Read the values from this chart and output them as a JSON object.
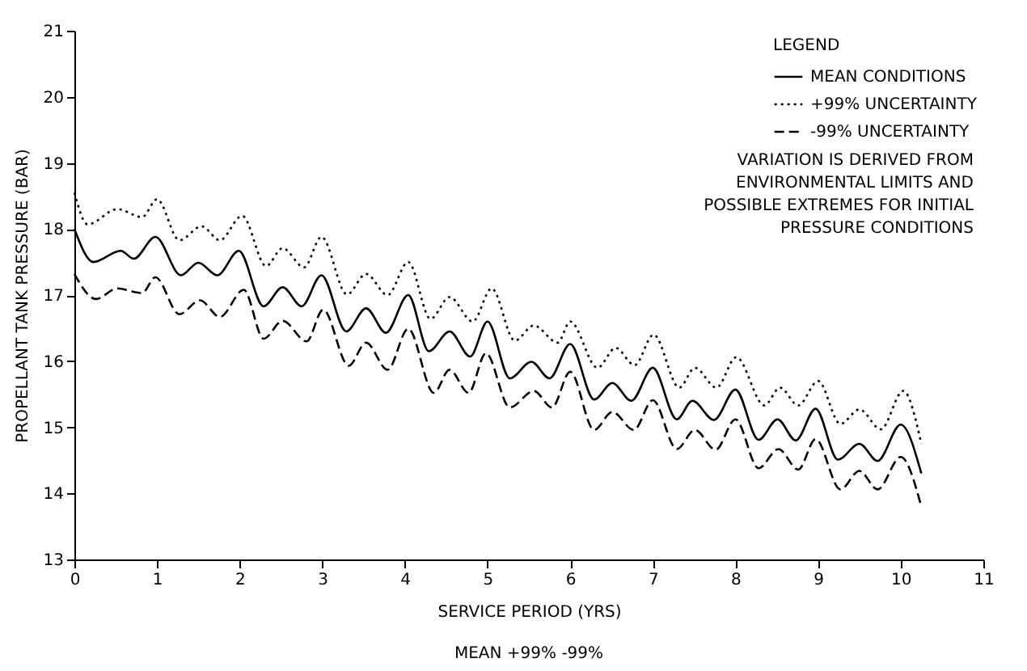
{
  "chart_data": {
    "type": "line",
    "xlabel": "SERVICE PERIOD (YRS)",
    "ylabel": "PROPELLANT TANK PRESSURE (BAR)",
    "legend_title": "LEGEND",
    "annotations": [
      "VARIATION IS DERIVED FROM",
      "ENVIRONMENTAL LIMITS AND",
      "POSSIBLE EXTREMES FOR INITIAL",
      "PRESSURE CONDITIONS",
      "MEAN  +99%    -99%"
    ],
    "xlim": [
      0,
      11
    ],
    "xticks": [
      0,
      1,
      2,
      3,
      4,
      5,
      6,
      7,
      8,
      9,
      10,
      11
    ],
    "ylim": [
      13,
      21
    ],
    "yticks": [
      13,
      14,
      15,
      16,
      17,
      18,
      19,
      20,
      21
    ],
    "grid": false,
    "legend": "top right",
    "marker": "none",
    "series": [
      {
        "name": "MEAN CONDITIONS",
        "color": "#000000",
        "line_style": "solid",
        "x": [
          0,
          0.23,
          0.56,
          0.72,
          0.98,
          1.29,
          1.5,
          1.73,
          1.99,
          2.29,
          2.52,
          2.75,
          2.99,
          3.29,
          3.53,
          3.77,
          4.04,
          4.29,
          4.54,
          4.79,
          5.0,
          5.27,
          5.53,
          5.75,
          6.0,
          6.29,
          6.51,
          6.74,
          7.0,
          7.29,
          7.48,
          7.74,
          8.0,
          8.28,
          8.51,
          8.73,
          8.97,
          9.24,
          9.5,
          9.72,
          10.0,
          10.25
        ],
        "values": [
          18.0,
          17.5,
          17.67,
          17.55,
          17.88,
          17.3,
          17.49,
          17.3,
          17.67,
          16.83,
          17.12,
          16.83,
          17.3,
          16.45,
          16.8,
          16.43,
          17.0,
          16.15,
          16.45,
          16.07,
          16.6,
          15.74,
          15.99,
          15.74,
          16.26,
          15.42,
          15.67,
          15.4,
          15.9,
          15.12,
          15.4,
          15.11,
          15.57,
          14.81,
          15.12,
          14.8,
          15.28,
          14.51,
          14.75,
          14.49,
          15.04,
          14.3
        ]
      },
      {
        "name": "+99% UNCERTAINTY",
        "color": "#000000",
        "line_style": "dotted",
        "x": [
          0,
          0.16,
          0.52,
          0.82,
          1.0,
          1.27,
          1.54,
          1.76,
          2.03,
          2.32,
          2.52,
          2.78,
          2.99,
          3.3,
          3.53,
          3.79,
          4.04,
          4.31,
          4.54,
          4.82,
          5.05,
          5.33,
          5.56,
          5.85,
          6.0,
          6.33,
          6.55,
          6.78,
          7.01,
          7.32,
          7.51,
          7.77,
          8.01,
          8.35,
          8.54,
          8.76,
          9.0,
          9.27,
          9.5,
          9.76,
          10.03,
          10.25
        ],
        "values": [
          18.55,
          18.07,
          18.3,
          18.18,
          18.45,
          17.83,
          18.04,
          17.83,
          18.2,
          17.44,
          17.71,
          17.42,
          17.88,
          17.01,
          17.32,
          17.0,
          17.5,
          16.64,
          16.97,
          16.6,
          17.1,
          16.31,
          16.54,
          16.28,
          16.6,
          15.9,
          16.2,
          15.94,
          16.4,
          15.6,
          15.9,
          15.6,
          16.06,
          15.33,
          15.6,
          15.33,
          15.7,
          15.05,
          15.27,
          14.97,
          15.55,
          14.75
        ]
      },
      {
        "name": "-99% UNCERTAINTY",
        "color": "#000000",
        "line_style": "dashed",
        "x": [
          0,
          0.26,
          0.52,
          0.82,
          0.98,
          1.27,
          1.52,
          1.76,
          2.05,
          2.29,
          2.52,
          2.81,
          3.01,
          3.32,
          3.53,
          3.79,
          4.04,
          4.35,
          4.54,
          4.77,
          4.98,
          5.27,
          5.56,
          5.78,
          6.0,
          6.29,
          6.51,
          6.77,
          7.0,
          7.29,
          7.51,
          7.76,
          8.0,
          8.28,
          8.52,
          8.76,
          8.97,
          9.27,
          9.5,
          9.72,
          10.0,
          10.25
        ],
        "values": [
          17.32,
          16.94,
          17.1,
          17.03,
          17.27,
          16.71,
          16.92,
          16.67,
          17.08,
          16.34,
          16.61,
          16.3,
          16.78,
          15.93,
          16.28,
          15.87,
          16.49,
          15.52,
          15.87,
          15.52,
          16.12,
          15.3,
          15.55,
          15.3,
          15.84,
          14.96,
          15.23,
          14.96,
          15.41,
          14.67,
          14.96,
          14.66,
          15.12,
          14.38,
          14.67,
          14.36,
          14.82,
          14.06,
          14.34,
          14.06,
          14.55,
          13.8
        ]
      }
    ]
  }
}
